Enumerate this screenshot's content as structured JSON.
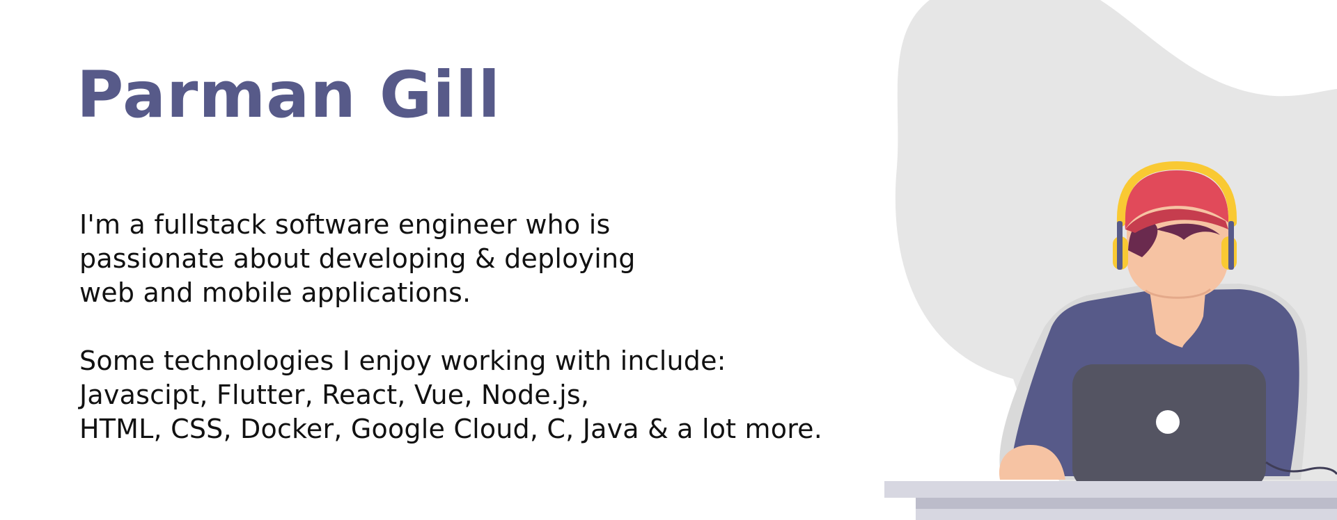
{
  "profile": {
    "name": "Parman Gill"
  },
  "bio": {
    "intro_lines": [
      "I'm a fullstack software engineer who is",
      "passionate about developing & deploying",
      "web and mobile applications."
    ],
    "tech_lines": [
      "Some technologies I enjoy working with include:",
      "Javascipt, Flutter, React, Vue, Node.js,",
      "HTML, CSS, Docker, Google Cloud, C, Java & a lot more."
    ]
  },
  "illustration": {
    "icons": [
      "developer-with-headphones-illustration",
      "laptop-icon",
      "desk"
    ],
    "colors": {
      "blob": "#e6e6e6",
      "shirt": "#575a89",
      "cap": "#e14a5a",
      "headphones": "#f9c933",
      "skin": "#f6c3a3",
      "hair": "#6a2a4e",
      "laptop": "#545462",
      "desk_top": "#d7d7e1",
      "desk_front": "#bcbcca"
    }
  }
}
